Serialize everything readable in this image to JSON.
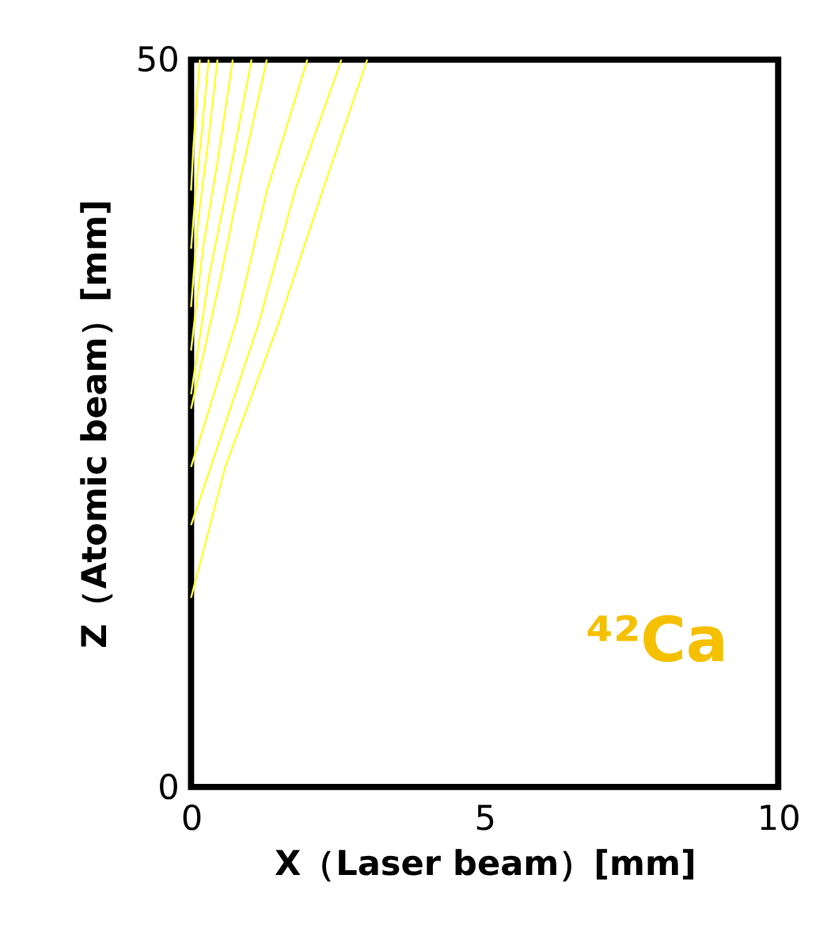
{
  "chart_data": {
    "type": "line",
    "xlabel": "X（Laser beam）[mm]",
    "ylabel": "Z（Atomic beam）[mm]",
    "xlim": [
      0,
      10
    ],
    "xticks": [
      0,
      5,
      10
    ],
    "ylim": [
      0,
      50
    ],
    "yticks": [
      0,
      50
    ],
    "grid": false,
    "legend": false,
    "marker": "none",
    "line_style": "solid",
    "annotations": [
      "⁴²Ca"
    ],
    "series": [
      {
        "color": "#ffff33",
        "x": [
          0,
          0.58,
          1.5,
          2.24,
          3.0
        ],
        "values": [
          13,
          22,
          32,
          41,
          50
        ]
      },
      {
        "color": "#ffff33",
        "x": [
          0,
          0.5,
          1.16,
          1.77,
          2.56
        ],
        "values": [
          18,
          24,
          32,
          41,
          50
        ]
      },
      {
        "color": "#ffff33",
        "x": [
          0,
          0.77,
          1.29,
          1.98
        ],
        "values": [
          22,
          32,
          41,
          50
        ]
      },
      {
        "color": "#ffff33",
        "x": [
          0,
          0.5,
          0.85,
          1.29
        ],
        "values": [
          26,
          35,
          42,
          50
        ]
      },
      {
        "color": "#ffff33",
        "x": [
          0,
          0.3,
          0.65,
          1.03
        ],
        "values": [
          27,
          35,
          42,
          50
        ]
      },
      {
        "color": "#ffff33",
        "x": [
          0,
          0.2,
          0.45,
          0.71
        ],
        "values": [
          30,
          37,
          43,
          50
        ]
      },
      {
        "color": "#ffff33",
        "x": [
          0,
          0.12,
          0.28,
          0.45
        ],
        "values": [
          33,
          39,
          44,
          50
        ]
      },
      {
        "color": "#ffff33",
        "x": [
          0,
          0.08,
          0.18,
          0.3
        ],
        "values": [
          37,
          41,
          45,
          50
        ]
      },
      {
        "color": "#ffff33",
        "x": [
          0,
          0.04,
          0.09,
          0.15
        ],
        "values": [
          41,
          44,
          47,
          50
        ]
      }
    ]
  }
}
